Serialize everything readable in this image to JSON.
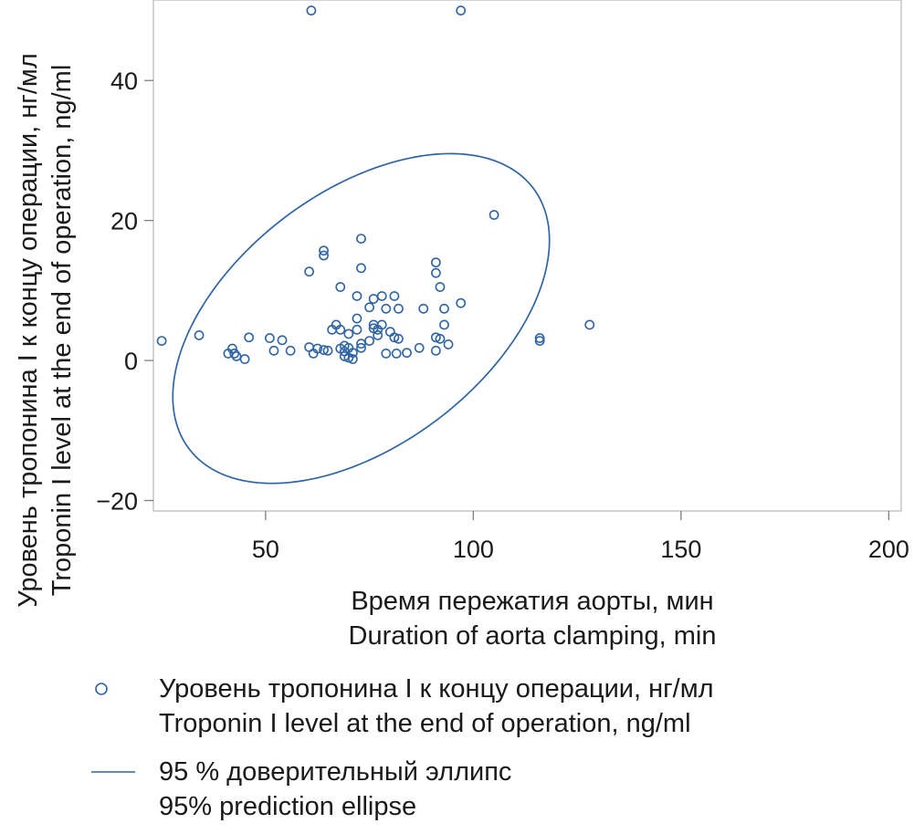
{
  "chart_data": {
    "type": "scatter",
    "xlabel": [
      "Время пережатия аорты, мин",
      "Duration of aorta clamping, min"
    ],
    "ylabel": [
      "Уровень тропонина I к концу операции, нг/мл",
      "Troponin I level at the end of operation, ng/ml"
    ],
    "xlim": [
      23,
      203
    ],
    "ylim": [
      -21.5,
      51.5
    ],
    "xticks": [
      50,
      100,
      150,
      200
    ],
    "yticks": [
      -20,
      0,
      20,
      40
    ],
    "tick_labels": {
      "x": [
        "50",
        "100",
        "150",
        "200"
      ],
      "y": [
        "−20",
        "0",
        "20",
        "40"
      ]
    },
    "grid": false,
    "legend_placement": "bottom",
    "series": [
      {
        "type": "scatter",
        "marker": "hollow-circle",
        "color": "#2e64a6",
        "label": [
          "Уровень тропонина I к концу операции, нг/мл",
          "Troponin I level at the end of operation, ng/ml"
        ],
        "points": [
          [
            61,
            50
          ],
          [
            97,
            50
          ],
          [
            105,
            20.8
          ],
          [
            73,
            17.4
          ],
          [
            64,
            15.7
          ],
          [
            64,
            15
          ],
          [
            91,
            14
          ],
          [
            73,
            13.2
          ],
          [
            60.5,
            12.7
          ],
          [
            91,
            12.5
          ],
          [
            92,
            10.5
          ],
          [
            68,
            10.5
          ],
          [
            72,
            9.2
          ],
          [
            78,
            9.2
          ],
          [
            81,
            9.2
          ],
          [
            76,
            8.8
          ],
          [
            97,
            8.2
          ],
          [
            75,
            7.6
          ],
          [
            79,
            7.4
          ],
          [
            82,
            7.4
          ],
          [
            88,
            7.4
          ],
          [
            93,
            7.4
          ],
          [
            72,
            6
          ],
          [
            67,
            5.1
          ],
          [
            76,
            5.1
          ],
          [
            78,
            5.1
          ],
          [
            93,
            5.1
          ],
          [
            128,
            5.1
          ],
          [
            66,
            4.4
          ],
          [
            68,
            4.4
          ],
          [
            72,
            4.4
          ],
          [
            76,
            4.6
          ],
          [
            77,
            4.4
          ],
          [
            80,
            4.1
          ],
          [
            70,
            3.8
          ],
          [
            77,
            3.6
          ],
          [
            34,
            3.6
          ],
          [
            46,
            3.3
          ],
          [
            51,
            3.2
          ],
          [
            81,
            3.3
          ],
          [
            82,
            3.1
          ],
          [
            91,
            3.3
          ],
          [
            92,
            3.1
          ],
          [
            116,
            3.2
          ],
          [
            25,
            2.8
          ],
          [
            54,
            2.9
          ],
          [
            75,
            2.8
          ],
          [
            116,
            2.8
          ],
          [
            73,
            2.4
          ],
          [
            94,
            2.3
          ],
          [
            69,
            2.1
          ],
          [
            60.5,
            1.9
          ],
          [
            62.5,
            1.7
          ],
          [
            68,
            1.7
          ],
          [
            70,
            1.8
          ],
          [
            73,
            1.8
          ],
          [
            87,
            1.8
          ],
          [
            42,
            1.7
          ],
          [
            52,
            1.4
          ],
          [
            56,
            1.4
          ],
          [
            64,
            1.5
          ],
          [
            65,
            1.4
          ],
          [
            69,
            1.3
          ],
          [
            71,
            1.1
          ],
          [
            91,
            1.4
          ],
          [
            41,
            1
          ],
          [
            42.5,
            1
          ],
          [
            61.5,
            1
          ],
          [
            79,
            1
          ],
          [
            81.5,
            1
          ],
          [
            84,
            1.1
          ],
          [
            43,
            0.6
          ],
          [
            69,
            0.6
          ],
          [
            70,
            0.4
          ],
          [
            71,
            0.2
          ],
          [
            45,
            0.2
          ]
        ]
      },
      {
        "type": "ellipse",
        "color": "#2e64a6",
        "label": [
          "95 % доверительный эллипс",
          "95% prediction ellipse"
        ],
        "center": [
          73,
          6
        ],
        "semi_axes": [
          47,
          20
        ],
        "angle_deg": 17
      }
    ]
  }
}
